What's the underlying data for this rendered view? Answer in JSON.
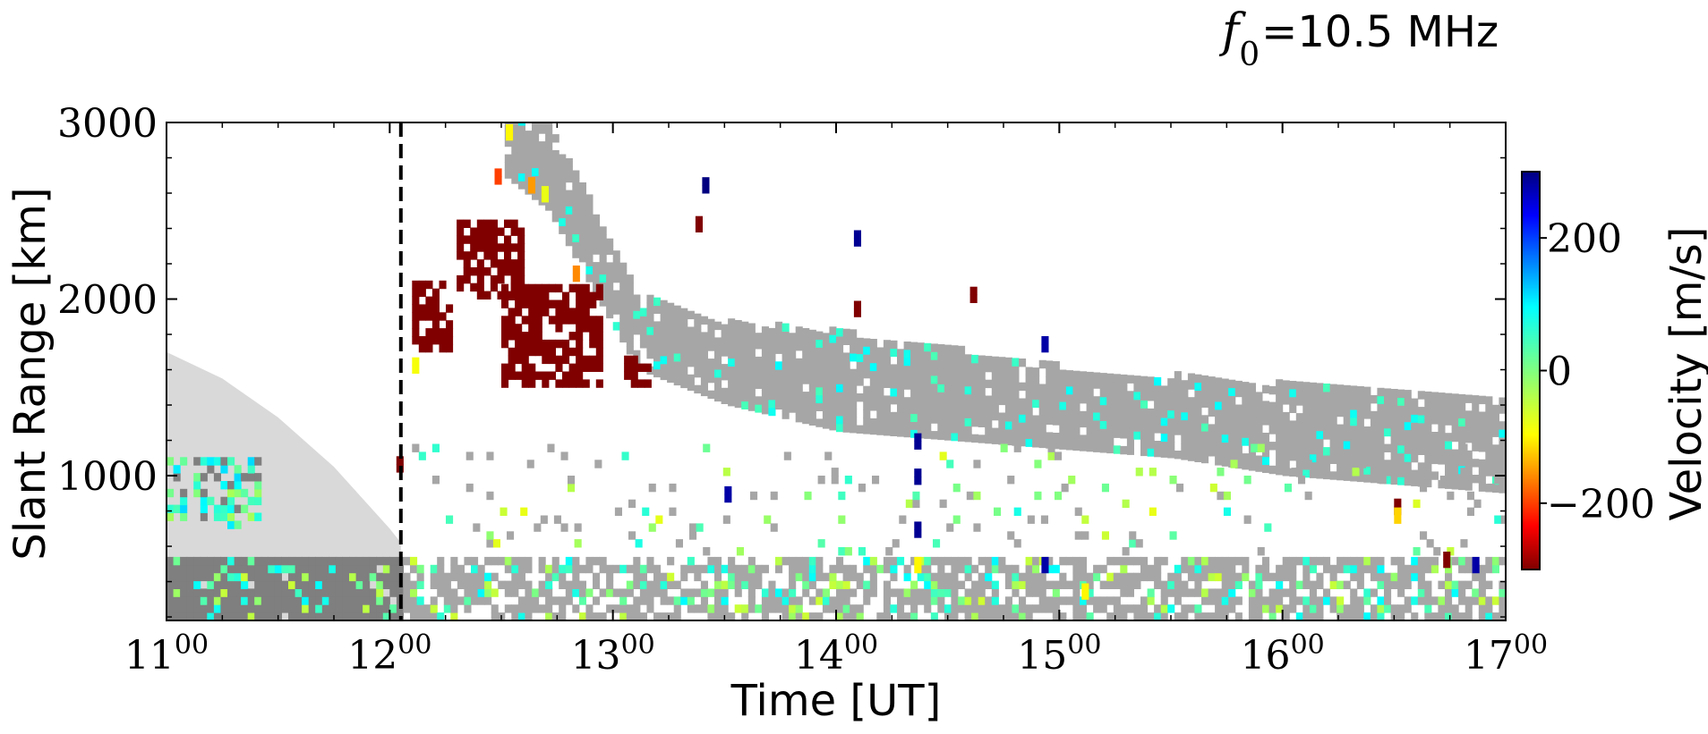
{
  "chart_data": {
    "type": "heatmap",
    "title_symbol": "f",
    "title_subscript": "0",
    "title_rest": "=10.5 MHz",
    "xlabel": "Time [UT]",
    "ylabel": "Slant Range [km]",
    "colorbar_label": "Velocity [m/s]",
    "xlim": [
      11,
      17
    ],
    "ylim": [
      180,
      3000
    ],
    "x_ticks": [
      {
        "value": 11,
        "hour": "11",
        "min": "00"
      },
      {
        "value": 12,
        "hour": "12",
        "min": "00"
      },
      {
        "value": 13,
        "hour": "13",
        "min": "00"
      },
      {
        "value": 14,
        "hour": "14",
        "min": "00"
      },
      {
        "value": 15,
        "hour": "15",
        "min": "00"
      },
      {
        "value": 16,
        "hour": "16",
        "min": "00"
      },
      {
        "value": 17,
        "hour": "17",
        "min": "00"
      }
    ],
    "y_ticks": [
      {
        "value": 1000,
        "label": "1000"
      },
      {
        "value": 2000,
        "label": "2000"
      },
      {
        "value": 3000,
        "label": "3000"
      }
    ],
    "colorbar": {
      "vmin": -300,
      "vmax": 300,
      "ticks": [
        {
          "value": 200,
          "label": "200"
        },
        {
          "value": 0,
          "label": "0"
        },
        {
          "value": -200,
          "label": "−200"
        }
      ],
      "colormap": "jet_r"
    },
    "vline": {
      "x": 12.05,
      "style": "dashed",
      "color": "#000000"
    },
    "shaded_region": {
      "color": "#d9d9d9",
      "description_points": [
        [
          11.0,
          1700
        ],
        [
          11.25,
          1550
        ],
        [
          11.5,
          1330
        ],
        [
          11.75,
          1050
        ],
        [
          12.0,
          700
        ],
        [
          12.05,
          620
        ]
      ]
    },
    "ground_scatter_color": "#a6a6a6",
    "ground_scatter_dark_color": "#7f7f7f",
    "ground_scatter_band": [
      {
        "t": 12.5,
        "top": 3000,
        "bottom": 2700
      },
      {
        "t": 12.7,
        "top": 3000,
        "bottom": 2500
      },
      {
        "t": 12.9,
        "top": 2500,
        "bottom": 2050
      },
      {
        "t": 13.1,
        "top": 2000,
        "bottom": 1600
      },
      {
        "t": 13.5,
        "top": 1850,
        "bottom": 1400
      },
      {
        "t": 14.0,
        "top": 1800,
        "bottom": 1250
      },
      {
        "t": 14.5,
        "top": 1700,
        "bottom": 1200
      },
      {
        "t": 15.0,
        "top": 1600,
        "bottom": 1150
      },
      {
        "t": 15.5,
        "top": 1550,
        "bottom": 1100
      },
      {
        "t": 16.0,
        "top": 1500,
        "bottom": 1000
      },
      {
        "t": 16.5,
        "top": 1450,
        "bottom": 950
      },
      {
        "t": 17.0,
        "top": 1400,
        "bottom": 900
      }
    ],
    "near_range_band": {
      "top": 500,
      "bottom": 180
    },
    "ionospheric_scatter_patches": [
      {
        "t0": 12.1,
        "t1": 12.28,
        "r0": 1700,
        "r1": 2100,
        "velocity": -300
      },
      {
        "t0": 12.3,
        "t1": 12.6,
        "r0": 2000,
        "r1": 2450,
        "velocity": -300
      },
      {
        "t0": 12.5,
        "t1": 12.95,
        "r0": 1500,
        "r1": 2050,
        "velocity": -300
      },
      {
        "t0": 13.05,
        "t1": 13.15,
        "r0": 1500,
        "r1": 1650,
        "velocity": -300
      }
    ],
    "isolated_points": [
      {
        "t": 12.47,
        "r": 2650,
        "velocity": -200
      },
      {
        "t": 12.52,
        "r": 2900,
        "velocity": -100
      },
      {
        "t": 12.62,
        "r": 2600,
        "velocity": -150
      },
      {
        "t": 12.68,
        "r": 2550,
        "velocity": -80
      },
      {
        "t": 12.82,
        "r": 2100,
        "velocity": -160
      },
      {
        "t": 12.1,
        "r": 1580,
        "velocity": -90
      },
      {
        "t": 13.4,
        "r": 2600,
        "velocity": 300
      },
      {
        "t": 13.5,
        "r": 850,
        "velocity": 280
      },
      {
        "t": 14.08,
        "r": 2300,
        "velocity": 290
      },
      {
        "t": 14.08,
        "r": 1900,
        "velocity": -300
      },
      {
        "t": 14.35,
        "r": 1150,
        "velocity": 290
      },
      {
        "t": 14.35,
        "r": 950,
        "velocity": 290
      },
      {
        "t": 14.35,
        "r": 650,
        "velocity": 290
      },
      {
        "t": 14.35,
        "r": 450,
        "velocity": -100
      },
      {
        "t": 14.92,
        "r": 1700,
        "velocity": 280
      },
      {
        "t": 14.92,
        "r": 450,
        "velocity": 280
      },
      {
        "t": 15.1,
        "r": 300,
        "velocity": -100
      },
      {
        "t": 16.5,
        "r": 780,
        "velocity": -300
      },
      {
        "t": 16.5,
        "r": 730,
        "velocity": -120
      },
      {
        "t": 16.85,
        "r": 450,
        "velocity": 280
      },
      {
        "t": 16.72,
        "r": 480,
        "velocity": -300
      },
      {
        "t": 14.6,
        "r": 1980,
        "velocity": -300
      },
      {
        "t": 13.37,
        "r": 2380,
        "velocity": -300
      },
      {
        "t": 12.03,
        "r": 1020,
        "velocity": -300
      }
    ]
  }
}
